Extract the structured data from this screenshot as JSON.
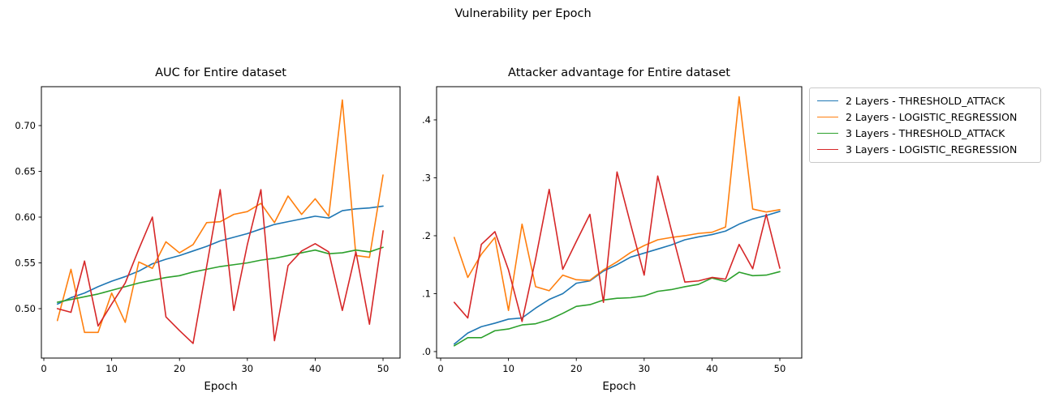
{
  "figure": {
    "title": "Vulnerability per Epoch"
  },
  "legend": {
    "items": [
      {
        "label": "2 Layers - THRESHOLD_ATTACK",
        "color": "#1f77b4"
      },
      {
        "label": "2 Layers - LOGISTIC_REGRESSION",
        "color": "#ff7f0e"
      },
      {
        "label": "3 Layers - THRESHOLD_ATTACK",
        "color": "#2ca02c"
      },
      {
        "label": "3 Layers - LOGISTIC_REGRESSION",
        "color": "#d62728"
      }
    ]
  },
  "chart_data": [
    {
      "type": "line",
      "title": "AUC for Entire dataset",
      "xlabel": "Epoch",
      "ylabel": "",
      "x": [
        2,
        4,
        6,
        8,
        10,
        12,
        14,
        16,
        18,
        20,
        22,
        24,
        26,
        28,
        30,
        32,
        34,
        36,
        38,
        40,
        42,
        44,
        46,
        48,
        50
      ],
      "series": [
        {
          "name": "2 Layers - THRESHOLD_ATTACK",
          "color": "#1f77b4",
          "values": [
            0.505,
            0.512,
            0.517,
            0.524,
            0.53,
            0.535,
            0.541,
            0.549,
            0.554,
            0.558,
            0.563,
            0.568,
            0.574,
            0.578,
            0.582,
            0.587,
            0.592,
            0.595,
            0.598,
            0.601,
            0.599,
            0.607,
            0.609,
            0.61,
            0.612
          ]
        },
        {
          "name": "2 Layers - LOGISTIC_REGRESSION",
          "color": "#ff7f0e",
          "values": [
            0.487,
            0.543,
            0.474,
            0.474,
            0.517,
            0.485,
            0.551,
            0.544,
            0.573,
            0.561,
            0.57,
            0.594,
            0.595,
            0.603,
            0.606,
            0.615,
            0.594,
            0.623,
            0.603,
            0.62,
            0.601,
            0.728,
            0.558,
            0.556,
            0.646
          ]
        },
        {
          "name": "3 Layers - THRESHOLD_ATTACK",
          "color": "#2ca02c",
          "values": [
            0.507,
            0.51,
            0.513,
            0.516,
            0.52,
            0.524,
            0.528,
            0.531,
            0.534,
            0.536,
            0.54,
            0.543,
            0.546,
            0.548,
            0.55,
            0.553,
            0.555,
            0.558,
            0.561,
            0.564,
            0.56,
            0.561,
            0.564,
            0.562,
            0.567
          ]
        },
        {
          "name": "3 Layers - LOGISTIC_REGRESSION",
          "color": "#d62728",
          "values": [
            0.5,
            0.496,
            0.552,
            0.481,
            0.505,
            0.528,
            0.565,
            0.6,
            0.491,
            0.476,
            0.462,
            0.546,
            0.63,
            0.498,
            0.57,
            0.63,
            0.465,
            0.547,
            0.563,
            0.571,
            0.562,
            0.498,
            0.562,
            0.483,
            0.585
          ]
        }
      ],
      "xticks": [
        0,
        10,
        20,
        30,
        40,
        50
      ],
      "xtick_labels": [
        "0",
        "10",
        "20",
        "30",
        "40",
        "50"
      ],
      "yticks": [
        0.5,
        0.55,
        0.6,
        0.65,
        0.7
      ],
      "ytick_labels": [
        "0.50",
        "0.55",
        "0.60",
        "0.65",
        "0.70"
      ],
      "xlim": [
        -0.36,
        52.51
      ],
      "ylim": [
        0.446,
        0.7425
      ],
      "grid": false,
      "legend_position": "outside-right"
    },
    {
      "type": "line",
      "title": "Attacker advantage for Entire dataset",
      "xlabel": "Epoch",
      "ylabel": "",
      "x": [
        2,
        4,
        6,
        8,
        10,
        12,
        14,
        16,
        18,
        20,
        22,
        24,
        26,
        28,
        30,
        32,
        34,
        36,
        38,
        40,
        42,
        44,
        46,
        48,
        50
      ],
      "series": [
        {
          "name": "2 Layers - THRESHOLD_ATTACK",
          "color": "#1f77b4",
          "values": [
            0.013,
            0.032,
            0.043,
            0.049,
            0.056,
            0.058,
            0.075,
            0.09,
            0.1,
            0.118,
            0.122,
            0.139,
            0.15,
            0.163,
            0.17,
            0.177,
            0.184,
            0.193,
            0.198,
            0.202,
            0.208,
            0.22,
            0.229,
            0.235,
            0.242
          ]
        },
        {
          "name": "2 Layers - LOGISTIC_REGRESSION",
          "color": "#ff7f0e",
          "values": [
            0.197,
            0.128,
            0.168,
            0.197,
            0.071,
            0.22,
            0.112,
            0.105,
            0.132,
            0.124,
            0.123,
            0.141,
            0.155,
            0.171,
            0.183,
            0.193,
            0.197,
            0.2,
            0.204,
            0.206,
            0.215,
            0.44,
            0.246,
            0.241,
            0.245
          ]
        },
        {
          "name": "3 Layers - THRESHOLD_ATTACK",
          "color": "#2ca02c",
          "values": [
            0.01,
            0.024,
            0.024,
            0.036,
            0.039,
            0.046,
            0.048,
            0.055,
            0.066,
            0.078,
            0.081,
            0.089,
            0.092,
            0.093,
            0.096,
            0.104,
            0.107,
            0.112,
            0.116,
            0.127,
            0.121,
            0.137,
            0.131,
            0.132,
            0.138
          ]
        },
        {
          "name": "3 Layers - LOGISTIC_REGRESSION",
          "color": "#d62728",
          "values": [
            0.085,
            0.058,
            0.185,
            0.207,
            0.141,
            0.052,
            0.16,
            0.28,
            0.142,
            0.19,
            0.237,
            0.085,
            0.31,
            0.22,
            0.132,
            0.303,
            0.21,
            0.12,
            0.122,
            0.128,
            0.125,
            0.185,
            0.143,
            0.237,
            0.144
          ]
        }
      ],
      "xticks": [
        0,
        10,
        20,
        30,
        40,
        50
      ],
      "xtick_labels": [
        "0",
        "10",
        "20",
        "30",
        "40",
        "50"
      ],
      "yticks": [
        0.0,
        0.1,
        0.2,
        0.3,
        0.4
      ],
      "ytick_labels": [
        "0.0",
        "0.1",
        "0.2",
        "0.3",
        "0.4"
      ],
      "xlim": [
        -0.6,
        53.23
      ],
      "ylim": [
        -0.0112,
        0.4573
      ],
      "grid": false,
      "legend_position": "outside-right"
    }
  ]
}
